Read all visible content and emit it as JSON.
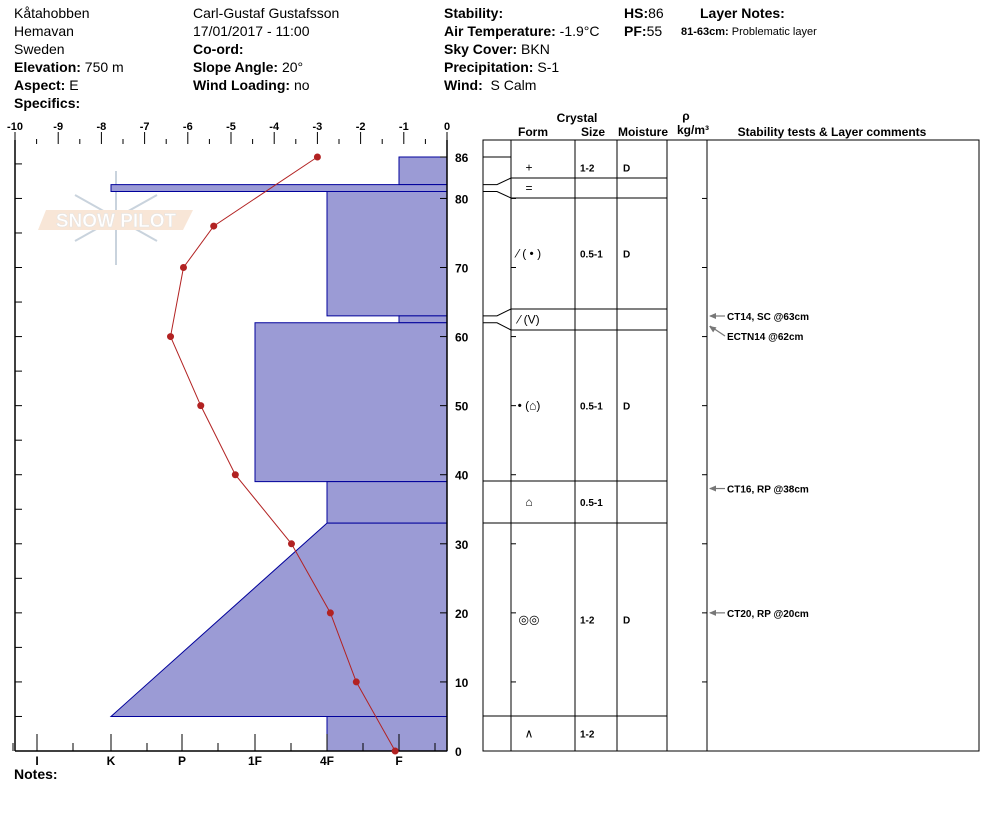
{
  "header": {
    "location": "Kåtahobben",
    "region": "Hemavan",
    "country": "Sweden",
    "elevation_label": "Elevation:",
    "elevation": "750 m",
    "aspect_label": "Aspect:",
    "aspect": "E",
    "specifics_label": "Specifics:",
    "observer": "Carl-Gustaf Gustafsson",
    "datetime": "17/01/2017 - 11:00",
    "coord_label": "Co-ord:",
    "slope_label": "Slope Angle:",
    "slope": "20°",
    "wind_loading_label": "Wind Loading:",
    "wind_loading": "no",
    "stability_label": "Stability:",
    "air_temp_label": "Air Temperature:",
    "air_temp": "-1.9°C",
    "sky_label": "Sky Cover:",
    "sky": "BKN",
    "precip_label": "Precipitation:",
    "precip": "S-1",
    "wind_label": "Wind:",
    "wind": "S Calm",
    "hs_label": "HS:",
    "hs": "86",
    "pf_label": "PF:",
    "pf": "55",
    "layer_notes_label": "Layer Notes:",
    "layer_note_range": "81-63cm:",
    "layer_note_text": "Problematic layer"
  },
  "table_headers": {
    "crystal": "Crystal",
    "form": "Form",
    "size": "Size",
    "moisture": "Moisture",
    "rho": "ρ",
    "density_unit": "kg/m³",
    "comments": "Stability tests & Layer comments"
  },
  "notes_label": "Notes:",
  "logo_text": "SNOW PILOT",
  "colors": {
    "hardness_fill": "#9b9bd5",
    "hardness_stroke": "#00009b",
    "temperature": "#b22222"
  },
  "chart_data": {
    "type": "snow-profile",
    "temperature_axis": {
      "ticks": [
        -10,
        -9,
        -8,
        -7,
        -6,
        -5,
        -4,
        -3,
        -2,
        -1,
        0
      ],
      "range": [
        -10,
        0
      ]
    },
    "depth_axis": {
      "ticks": [
        0,
        10,
        20,
        30,
        40,
        50,
        60,
        70,
        80,
        86
      ],
      "range": [
        0,
        86
      ]
    },
    "hardness_axis": {
      "ticks": [
        "I",
        "K",
        "P",
        "1F",
        "4F",
        "F"
      ]
    },
    "temperature_profile": [
      {
        "depth": 86,
        "temp": -3.0
      },
      {
        "depth": 76,
        "temp": -5.4
      },
      {
        "depth": 70,
        "temp": -6.1
      },
      {
        "depth": 60,
        "temp": -6.4
      },
      {
        "depth": 50,
        "temp": -5.7
      },
      {
        "depth": 40,
        "temp": -4.9
      },
      {
        "depth": 30,
        "temp": -3.6
      },
      {
        "depth": 20,
        "temp": -2.7
      },
      {
        "depth": 10,
        "temp": -2.1
      },
      {
        "depth": 0,
        "temp": -1.2
      }
    ],
    "layers": [
      {
        "top": 86,
        "bottom": 82,
        "hardness_top": "F",
        "hardness_bottom": "F",
        "form": "+",
        "size": "1-2",
        "moisture": "D"
      },
      {
        "top": 82,
        "bottom": 81,
        "hardness_top": "K",
        "hardness_bottom": "K",
        "form": "=",
        "size": "",
        "moisture": ""
      },
      {
        "top": 81,
        "bottom": 63,
        "hardness_top": "4F",
        "hardness_bottom": "4F",
        "form": "⁄ ( • )",
        "size": "0.5-1",
        "moisture": "D"
      },
      {
        "top": 63,
        "bottom": 62,
        "hardness_top": "F",
        "hardness_bottom": "F",
        "form": "⁄ (V)",
        "size": "",
        "moisture": ""
      },
      {
        "top": 62,
        "bottom": 39,
        "hardness_top": "1F",
        "hardness_bottom": "1F",
        "form": "• (⌂)",
        "size": "0.5-1",
        "moisture": "D"
      },
      {
        "top": 39,
        "bottom": 33,
        "hardness_top": "4F",
        "hardness_bottom": "4F",
        "form": "⌂",
        "size": "0.5-1",
        "moisture": ""
      },
      {
        "top": 33,
        "bottom": 5,
        "hardness_top": "4F",
        "hardness_bottom": "K",
        "form": "◎◎",
        "size": "1-2",
        "moisture": "D"
      },
      {
        "top": 5,
        "bottom": 0,
        "hardness_top": "4F",
        "hardness_bottom": "4F",
        "form": "∧",
        "size": "1-2",
        "moisture": ""
      }
    ],
    "stability_tests": [
      {
        "depth": 63,
        "text": "CT14, SC @63cm"
      },
      {
        "depth": 62,
        "text": "ECTN14 @62cm"
      },
      {
        "depth": 38,
        "text": "CT16, RP @38cm"
      },
      {
        "depth": 20,
        "text": "CT20, RP @20cm"
      }
    ]
  }
}
